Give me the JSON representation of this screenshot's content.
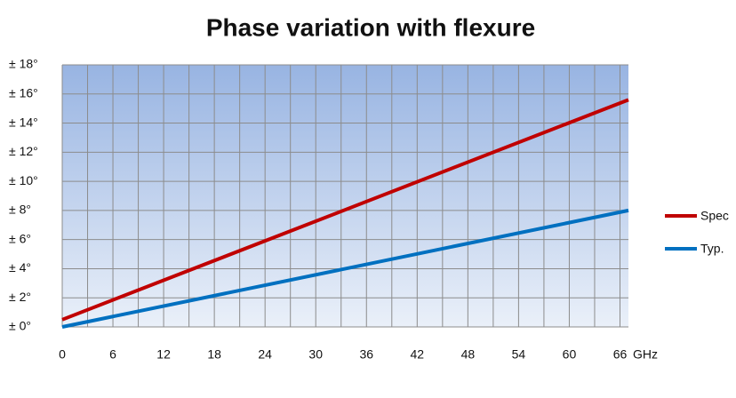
{
  "chart_data": {
    "type": "line",
    "title": "Phase variation with flexure",
    "x_label": "GHz",
    "x": [
      0,
      67
    ],
    "series": [
      {
        "name": "Spec",
        "color": "#c00000",
        "values": [
          0.5,
          15.6
        ]
      },
      {
        "name": "Typ.",
        "color": "#0070c0",
        "values": [
          0,
          8.0
        ]
      }
    ],
    "xlim": [
      0,
      67
    ],
    "ylim": [
      0,
      18
    ],
    "xticks": [
      0,
      6,
      12,
      18,
      24,
      30,
      36,
      42,
      48,
      54,
      60,
      66
    ],
    "x_minor_ticks": [
      3,
      9,
      15,
      21,
      27,
      33,
      39,
      45,
      51,
      57,
      63
    ],
    "yticks": [
      {
        "value": 0,
        "label": "± 0°"
      },
      {
        "value": 2,
        "label": "± 2°"
      },
      {
        "value": 4,
        "label": "± 4°"
      },
      {
        "value": 6,
        "label": "± 6°"
      },
      {
        "value": 8,
        "label": "± 8°"
      },
      {
        "value": 10,
        "label": "± 10°"
      },
      {
        "value": 12,
        "label": "± 12°"
      },
      {
        "value": 14,
        "label": "± 14°"
      },
      {
        "value": 16,
        "label": "± 16°"
      },
      {
        "value": 18,
        "label": "± 18°"
      }
    ],
    "grid": true,
    "legend": "right"
  }
}
